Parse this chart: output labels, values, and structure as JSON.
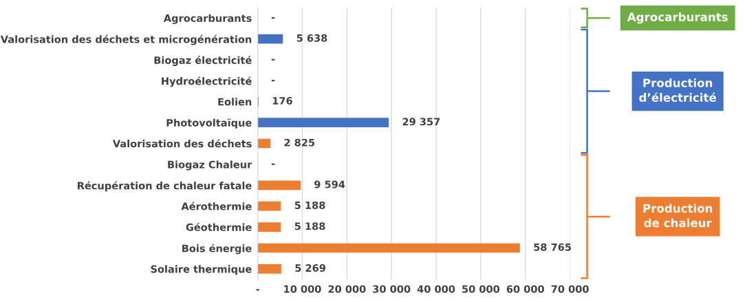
{
  "chart_data": {
    "type": "bar",
    "orientation": "horizontal",
    "categories": [
      "Agrocarburants",
      "Valorisation des déchets et microgénération",
      "Biogaz électricité",
      "Hydroélectricité",
      "Eolien",
      "Photovoltaïque",
      "Valorisation des déchets",
      "Biogaz Chaleur",
      "Récupération de chaleur fatale",
      "Aérothermie",
      "Géothermie",
      "Bois énergie",
      "Solaire thermique"
    ],
    "values": [
      0,
      5638,
      0,
      0,
      176,
      29357,
      2825,
      0,
      9594,
      5188,
      5188,
      58765,
      5269
    ],
    "value_labels": [
      "-",
      "5 638",
      "-",
      "-",
      "176",
      "29 357",
      "2 825",
      "-",
      "9 594",
      "5 188",
      "5 188",
      "58 765",
      "5 269"
    ],
    "colors": [
      "#70ad47",
      "#4472c4",
      "#4472c4",
      "#4472c4",
      "#4472c4",
      "#4472c4",
      "#ed7d31",
      "#ed7d31",
      "#ed7d31",
      "#ed7d31",
      "#ed7d31",
      "#ed7d31",
      "#ed7d31"
    ],
    "xlim": [
      0,
      70000
    ],
    "xticks": [
      {
        "value": 0,
        "label": "-"
      },
      {
        "value": 10000,
        "label": "10 000"
      },
      {
        "value": 20000,
        "label": "20 000"
      },
      {
        "value": 30000,
        "label": "30 000"
      },
      {
        "value": 40000,
        "label": "40 000"
      },
      {
        "value": 50000,
        "label": "50 000"
      },
      {
        "value": 60000,
        "label": "60 000"
      },
      {
        "value": 70000,
        "label": "70 000"
      }
    ],
    "grid": "x",
    "annotations": [
      "Agrocarburants",
      "Production\nd’électricité",
      "Production\nde chaleur"
    ]
  }
}
